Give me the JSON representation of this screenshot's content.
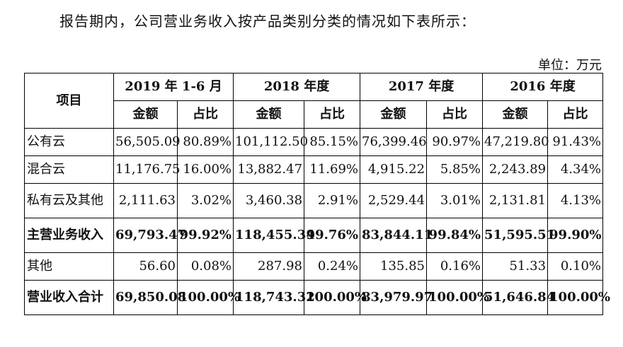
{
  "intro": "报告期内，公司营业务收入按产品类别分类的情况如下表所示：",
  "unit": "单位：万元",
  "table": {
    "item_header": "项目",
    "periods": [
      "2019 年 1-6 月",
      "2018 年度",
      "2017 年度",
      "2016 年度"
    ],
    "sub_headers": [
      "金额",
      "占比",
      "金额",
      "占比",
      "金额",
      "占比",
      "金额",
      "占比"
    ],
    "rows": [
      {
        "label": "公有云",
        "bold": false,
        "values": [
          "56,505.09",
          "80.89%",
          "101,112.50",
          "85.15%",
          "76,399.46",
          "90.97%",
          "47,219.80",
          "91.43%"
        ]
      },
      {
        "label": "混合云",
        "bold": false,
        "values": [
          "11,176.75",
          "16.00%",
          "13,882.47",
          "11.69%",
          "4,915.22",
          "5.85%",
          "2,243.89",
          "4.34%"
        ]
      },
      {
        "label": "私有云及其他",
        "bold": false,
        "values": [
          "2,111.63",
          "3.02%",
          "3,460.38",
          "2.91%",
          "2,529.44",
          "3.01%",
          "2,131.81",
          "4.13%"
        ]
      },
      {
        "label": "主营业务收入",
        "bold": true,
        "values": [
          "69,793.47",
          "99.92%",
          "118,455.34",
          "99.76%",
          "83,844.11",
          "99.84%",
          "51,595.51",
          "99.90%"
        ]
      },
      {
        "label": "其他",
        "bold": false,
        "values": [
          "56.60",
          "0.08%",
          "287.98",
          "0.24%",
          "135.85",
          "0.16%",
          "51.33",
          "0.10%"
        ]
      },
      {
        "label": "营业收入合计",
        "bold": true,
        "values": [
          "69,850.08",
          "100.00%",
          "118,743.32",
          "100.00%",
          "83,979.97",
          "100.00%",
          "51,646.84",
          "100.00%"
        ]
      }
    ]
  }
}
